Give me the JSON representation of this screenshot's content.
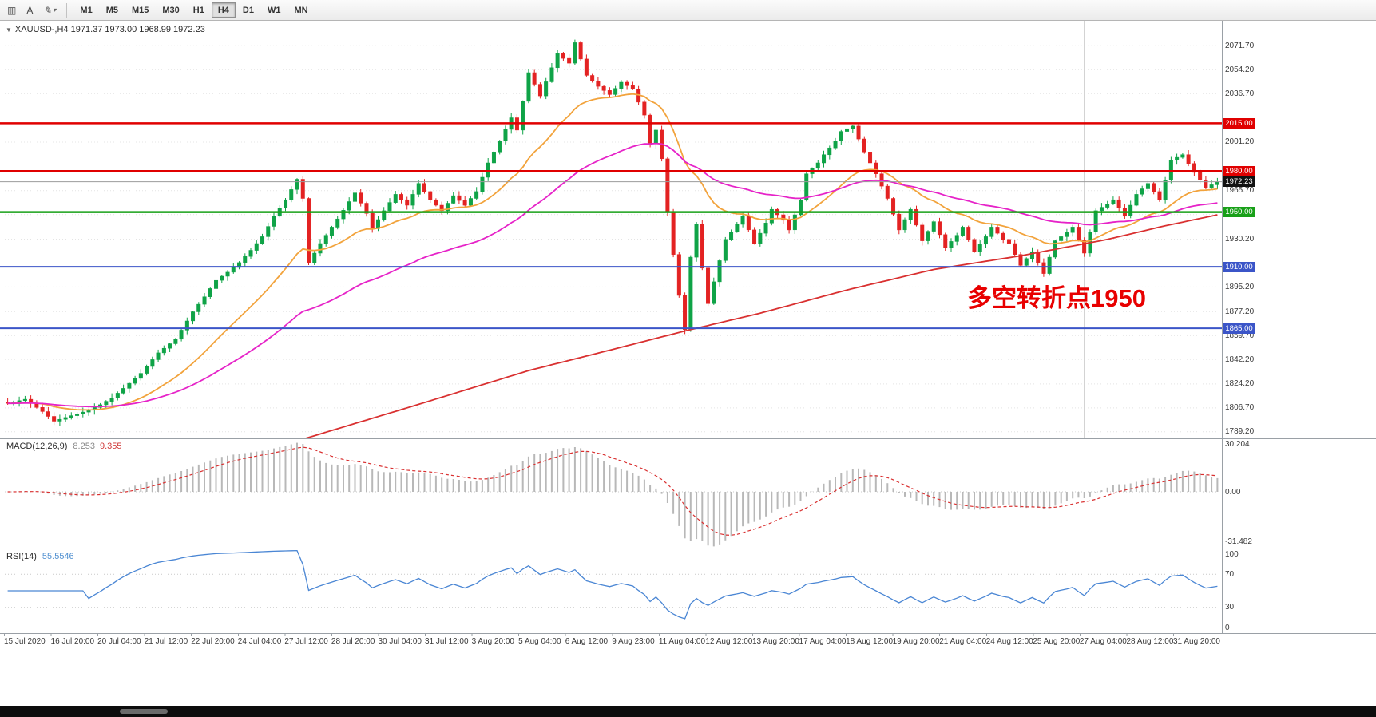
{
  "app": {
    "toolbar": {
      "icons": {
        "chart_window": "▥",
        "letter_a": "A",
        "pencil": "✎",
        "chevron": "▾"
      },
      "timeframes": [
        "M1",
        "M5",
        "M15",
        "M30",
        "H1",
        "H4",
        "D1",
        "W1",
        "MN"
      ],
      "active_timeframe": "H4"
    },
    "chart_header": {
      "collapse_icon": "▼",
      "title": "XAUUSD-,H4  1971.37 1973.00 1968.99 1972.23"
    },
    "annotation": "多空转折点1950",
    "price_axis": [
      "2071.70",
      "2054.20",
      "2036.70",
      "2001.20",
      "1965.70",
      "1948.20",
      "1930.20",
      "1895.20",
      "1877.20",
      "1859.70",
      "1842.20",
      "1824.20",
      "1806.70",
      "1789.20"
    ],
    "time_axis": [
      "15 Jul 2020",
      "16 Jul 20:00",
      "20 Jul 04:00",
      "21 Jul 12:00",
      "22 Jul 20:00",
      "24 Jul 04:00",
      "27 Jul 12:00",
      "28 Jul 20:00",
      "30 Jul 04:00",
      "31 Jul 12:00",
      "3 Aug 20:00",
      "5 Aug 04:00",
      "6 Aug 12:00",
      "9 Aug 23:00",
      "11 Aug 04:00",
      "12 Aug 12:00",
      "13 Aug 20:00",
      "17 Aug 04:00",
      "18 Aug 12:00",
      "19 Aug 20:00",
      "21 Aug 04:00",
      "24 Aug 12:00",
      "25 Aug 20:00",
      "27 Aug 04:00",
      "28 Aug 12:00",
      "31 Aug 20:00"
    ]
  },
  "chart_data": {
    "type": "candlestick",
    "symbol": "XAUUSD-",
    "timeframe": "H4",
    "ohlc": {
      "open": "1971.37",
      "high": "1973.00",
      "low": "1968.99",
      "close": "1972.23"
    },
    "y_range": [
      1785,
      2090
    ],
    "n_candles": 210,
    "close_waypoints": [
      [
        0,
        1810
      ],
      [
        3,
        1813
      ],
      [
        6,
        1804
      ],
      [
        8,
        1797
      ],
      [
        11,
        1801
      ],
      [
        14,
        1805
      ],
      [
        16,
        1809
      ],
      [
        18,
        1814
      ],
      [
        20,
        1821
      ],
      [
        23,
        1832
      ],
      [
        26,
        1847
      ],
      [
        29,
        1857
      ],
      [
        32,
        1877
      ],
      [
        34,
        1888
      ],
      [
        36,
        1900
      ],
      [
        38,
        1906
      ],
      [
        40,
        1913
      ],
      [
        42,
        1922
      ],
      [
        44,
        1932
      ],
      [
        46,
        1947
      ],
      [
        48,
        1959
      ],
      [
        50,
        1974
      ],
      [
        51,
        1960
      ],
      [
        52,
        1913
      ],
      [
        54,
        1927
      ],
      [
        57,
        1945
      ],
      [
        60,
        1964
      ],
      [
        62,
        1949
      ],
      [
        63,
        1938
      ],
      [
        65,
        1951
      ],
      [
        67,
        1963
      ],
      [
        69,
        1955
      ],
      [
        71,
        1971
      ],
      [
        73,
        1959
      ],
      [
        75,
        1951
      ],
      [
        77,
        1962
      ],
      [
        79,
        1955
      ],
      [
        81,
        1965
      ],
      [
        83,
        1986
      ],
      [
        85,
        2002
      ],
      [
        87,
        2019
      ],
      [
        88,
        2010
      ],
      [
        90,
        2052
      ],
      [
        92,
        2035
      ],
      [
        95,
        2066
      ],
      [
        97,
        2059
      ],
      [
        98,
        2074
      ],
      [
        100,
        2050
      ],
      [
        102,
        2042
      ],
      [
        104,
        2036
      ],
      [
        106,
        2045
      ],
      [
        108,
        2040
      ],
      [
        110,
        2021
      ],
      [
        111,
        2000
      ],
      [
        112,
        2010
      ],
      [
        113,
        1989
      ],
      [
        114,
        1950
      ],
      [
        115,
        1919
      ],
      [
        116,
        1889
      ],
      [
        117,
        1864
      ],
      [
        118,
        1917
      ],
      [
        119,
        1941
      ],
      [
        120,
        1909
      ],
      [
        121,
        1883
      ],
      [
        122,
        1899
      ],
      [
        124,
        1930
      ],
      [
        126,
        1941
      ],
      [
        127,
        1947
      ],
      [
        129,
        1927
      ],
      [
        131,
        1942
      ],
      [
        132,
        1952
      ],
      [
        134,
        1944
      ],
      [
        135,
        1937
      ],
      [
        137,
        1959
      ],
      [
        138,
        1978
      ],
      [
        140,
        1986
      ],
      [
        141,
        1992
      ],
      [
        143,
        2002
      ],
      [
        144,
        2009
      ],
      [
        146,
        2013
      ],
      [
        148,
        1994
      ],
      [
        150,
        1978
      ],
      [
        152,
        1960
      ],
      [
        154,
        1937
      ],
      [
        156,
        1952
      ],
      [
        158,
        1929
      ],
      [
        160,
        1943
      ],
      [
        162,
        1924
      ],
      [
        164,
        1933
      ],
      [
        165,
        1939
      ],
      [
        167,
        1921
      ],
      [
        169,
        1932
      ],
      [
        170,
        1939
      ],
      [
        172,
        1930
      ],
      [
        173,
        1927
      ],
      [
        175,
        1911
      ],
      [
        177,
        1921
      ],
      [
        179,
        1905
      ],
      [
        181,
        1929
      ],
      [
        183,
        1935
      ],
      [
        184,
        1939
      ],
      [
        186,
        1920
      ],
      [
        188,
        1951
      ],
      [
        190,
        1956
      ],
      [
        191,
        1959
      ],
      [
        193,
        1947
      ],
      [
        195,
        1963
      ],
      [
        197,
        1971
      ],
      [
        199,
        1959
      ],
      [
        201,
        1988
      ],
      [
        203,
        1992
      ],
      [
        205,
        1979
      ],
      [
        207,
        1968
      ],
      [
        209,
        1972
      ]
    ],
    "red_ma_waypoints": [
      [
        48,
        1780
      ],
      [
        70,
        1808
      ],
      [
        90,
        1834
      ],
      [
        105,
        1850
      ],
      [
        117,
        1863
      ],
      [
        130,
        1876
      ],
      [
        145,
        1893
      ],
      [
        160,
        1908
      ],
      [
        175,
        1918
      ],
      [
        190,
        1930
      ],
      [
        200,
        1940
      ],
      [
        209,
        1948
      ]
    ],
    "ma": {
      "fast_period": 21,
      "mid_period": 55
    },
    "vertical_line_index": 186,
    "levels": [
      {
        "price": 2015.0,
        "label": "2015.00",
        "color": "#e00000",
        "width": 2.5
      },
      {
        "price": 1980.0,
        "label": "1980.00",
        "color": "#e00000",
        "width": 2.5
      },
      {
        "price": 1950.0,
        "label": "1950.00",
        "color": "#18a018",
        "width": 2.5
      },
      {
        "price": 1910.0,
        "label": "1910.00",
        "color": "#3b55c8",
        "width": 2
      },
      {
        "price": 1865.0,
        "label": "1865.00",
        "color": "#3b55c8",
        "width": 2
      }
    ],
    "bid": {
      "price": 1972.23,
      "label": "1972.23"
    },
    "indicators": {
      "macd": {
        "name": "MACD(12,26,9)",
        "main_value": "8.253",
        "signal_value": "9.355",
        "fast": 12,
        "slow": 26,
        "signal": 9,
        "scale": [
          "30.204",
          "0.00",
          "-31.482"
        ],
        "range": [
          -35,
          33
        ]
      },
      "rsi": {
        "name": "RSI(14)",
        "value": "55.5546",
        "period": 14,
        "scale": [
          "100",
          "70",
          "30",
          "0"
        ],
        "levels": [
          70,
          30
        ]
      }
    },
    "colors": {
      "up": "#0fa347",
      "down": "#e32222",
      "ma_fast": "#f2a33c",
      "ma_mid": "#e623c8",
      "ma_slow": "#d93030",
      "bid_line": "#9b9b9b",
      "macd_hist": "#b8b8b8",
      "macd_signal": "#d93030",
      "rsi": "#4a86d4",
      "grid": "#e4e4e4",
      "level_grid": "#c9c9c9",
      "separator": "#9aa0a6",
      "annotation": "#e80000",
      "vline": "#c8c8c8",
      "bid_box": "#111111"
    }
  }
}
